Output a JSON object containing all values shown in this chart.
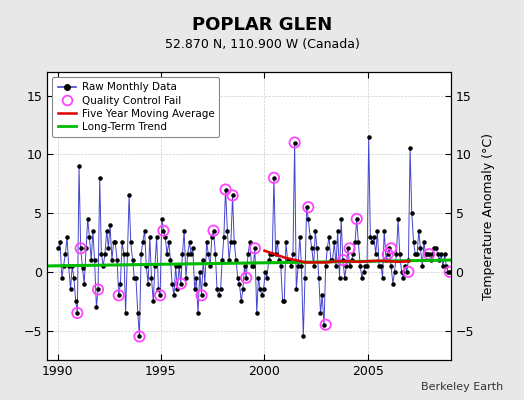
{
  "title": "POPLAR GLEN",
  "subtitle": "52.870 N, 110.900 W (Canada)",
  "ylabel": "Temperature Anomaly (°C)",
  "credit": "Berkeley Earth",
  "xlim": [
    1989.5,
    2009.0
  ],
  "ylim": [
    -7.5,
    17
  ],
  "yticks": [
    -5,
    0,
    5,
    10,
    15
  ],
  "xticks": [
    1990,
    1995,
    2000,
    2005
  ],
  "bg_color": "#e8e8e8",
  "plot_bg": "#ffffff",
  "raw_color": "#4444cc",
  "raw_dot_color": "#000000",
  "qc_color": "#ff44ff",
  "ma_color": "#dd0000",
  "trend_color": "#00bb00",
  "raw_data_x": [
    1990.04,
    1990.12,
    1990.21,
    1990.29,
    1990.38,
    1990.46,
    1990.54,
    1990.63,
    1990.71,
    1990.79,
    1990.88,
    1990.96,
    1991.04,
    1991.12,
    1991.21,
    1991.29,
    1991.38,
    1991.46,
    1991.54,
    1991.63,
    1991.71,
    1991.79,
    1991.88,
    1991.96,
    1992.04,
    1992.12,
    1992.21,
    1992.29,
    1992.38,
    1992.46,
    1992.54,
    1992.63,
    1992.71,
    1992.79,
    1992.88,
    1992.96,
    1993.04,
    1993.12,
    1993.21,
    1993.29,
    1993.38,
    1993.46,
    1993.54,
    1993.63,
    1993.71,
    1993.79,
    1993.88,
    1993.96,
    1994.04,
    1994.12,
    1994.21,
    1994.29,
    1994.38,
    1994.46,
    1994.54,
    1994.63,
    1994.71,
    1994.79,
    1994.88,
    1994.96,
    1995.04,
    1995.12,
    1995.21,
    1995.29,
    1995.38,
    1995.46,
    1995.54,
    1995.63,
    1995.71,
    1995.79,
    1995.88,
    1995.96,
    1996.04,
    1996.12,
    1996.21,
    1996.29,
    1996.38,
    1996.46,
    1996.54,
    1996.63,
    1996.71,
    1996.79,
    1996.88,
    1996.96,
    1997.04,
    1997.12,
    1997.21,
    1997.29,
    1997.38,
    1997.46,
    1997.54,
    1997.63,
    1997.71,
    1997.79,
    1997.88,
    1997.96,
    1998.04,
    1998.12,
    1998.21,
    1998.29,
    1998.38,
    1998.46,
    1998.54,
    1998.63,
    1998.71,
    1998.79,
    1998.88,
    1998.96,
    1999.04,
    1999.12,
    1999.21,
    1999.29,
    1999.38,
    1999.46,
    1999.54,
    1999.63,
    1999.71,
    1999.79,
    1999.88,
    1999.96,
    2000.04,
    2000.12,
    2000.21,
    2000.29,
    2000.38,
    2000.46,
    2000.54,
    2000.63,
    2000.71,
    2000.79,
    2000.88,
    2000.96,
    2001.04,
    2001.12,
    2001.21,
    2001.29,
    2001.38,
    2001.46,
    2001.54,
    2001.63,
    2001.71,
    2001.79,
    2001.88,
    2001.96,
    2002.04,
    2002.12,
    2002.21,
    2002.29,
    2002.38,
    2002.46,
    2002.54,
    2002.63,
    2002.71,
    2002.79,
    2002.88,
    2002.96,
    2003.04,
    2003.12,
    2003.21,
    2003.29,
    2003.38,
    2003.46,
    2003.54,
    2003.63,
    2003.71,
    2003.79,
    2003.88,
    2003.96,
    2004.04,
    2004.12,
    2004.21,
    2004.29,
    2004.38,
    2004.46,
    2004.54,
    2004.63,
    2004.71,
    2004.79,
    2004.88,
    2004.96,
    2005.04,
    2005.12,
    2005.21,
    2005.29,
    2005.38,
    2005.46,
    2005.54,
    2005.63,
    2005.71,
    2005.79,
    2005.88,
    2005.96,
    2006.04,
    2006.12,
    2006.21,
    2006.29,
    2006.38,
    2006.46,
    2006.54,
    2006.63,
    2006.71,
    2006.79,
    2006.88,
    2006.96,
    2007.04,
    2007.12,
    2007.21,
    2007.29,
    2007.38,
    2007.46,
    2007.54,
    2007.63,
    2007.71,
    2007.79,
    2007.88,
    2007.96,
    2008.04,
    2008.12,
    2008.21,
    2008.29,
    2008.38,
    2008.46,
    2008.54,
    2008.63,
    2008.71,
    2008.79,
    2008.88,
    2008.96
  ],
  "raw_data_y": [
    2.0,
    2.5,
    -0.5,
    0.5,
    1.5,
    3.0,
    0.5,
    -1.5,
    0.5,
    -0.5,
    -2.5,
    -3.5,
    9.0,
    2.0,
    0.3,
    -1.0,
    2.0,
    4.5,
    3.0,
    1.0,
    3.5,
    1.0,
    -3.0,
    -1.5,
    8.0,
    1.5,
    0.5,
    1.5,
    3.5,
    2.0,
    4.0,
    1.0,
    2.5,
    2.5,
    1.0,
    -2.0,
    -1.0,
    2.5,
    1.5,
    -3.5,
    1.5,
    6.5,
    2.5,
    1.0,
    -0.5,
    -0.5,
    -3.5,
    -5.5,
    1.5,
    2.5,
    3.5,
    0.5,
    -1.0,
    3.0,
    -0.5,
    -2.5,
    0.5,
    3.0,
    -1.5,
    -2.0,
    4.5,
    3.5,
    3.0,
    1.5,
    2.5,
    1.0,
    -1.0,
    -2.0,
    0.5,
    -1.5,
    0.5,
    -1.0,
    1.5,
    3.5,
    -0.5,
    1.5,
    2.5,
    1.5,
    2.0,
    -1.5,
    -0.5,
    -3.5,
    0.0,
    -2.0,
    1.0,
    -1.0,
    2.5,
    1.5,
    0.5,
    3.0,
    3.5,
    1.5,
    -1.5,
    -2.0,
    -1.5,
    1.0,
    3.0,
    7.0,
    3.5,
    1.0,
    2.5,
    6.5,
    2.5,
    1.0,
    -0.5,
    -1.0,
    -2.5,
    -1.5,
    0.5,
    -0.5,
    1.5,
    2.5,
    0.5,
    0.5,
    2.0,
    -3.5,
    -0.5,
    -1.5,
    -2.0,
    -1.5,
    0.0,
    -0.5,
    1.0,
    1.5,
    1.5,
    8.0,
    1.5,
    2.5,
    1.0,
    0.5,
    -2.5,
    -2.5,
    2.5,
    1.0,
    1.0,
    0.5,
    1.5,
    11.0,
    -1.5,
    0.5,
    3.0,
    0.5,
    -5.5,
    -0.5,
    5.5,
    4.5,
    3.0,
    2.0,
    0.5,
    3.5,
    2.0,
    -0.5,
    -3.5,
    -2.0,
    -4.5,
    0.5,
    2.0,
    3.0,
    1.0,
    1.0,
    2.5,
    0.5,
    3.5,
    -0.5,
    4.5,
    1.0,
    -0.5,
    0.5,
    2.0,
    0.5,
    1.0,
    1.5,
    2.5,
    4.5,
    2.5,
    0.5,
    -0.5,
    0.0,
    0.5,
    0.5,
    11.5,
    3.0,
    2.5,
    3.0,
    1.5,
    3.5,
    0.5,
    0.5,
    -0.5,
    3.5,
    1.0,
    1.5,
    2.0,
    0.5,
    -1.0,
    0.0,
    1.5,
    4.5,
    1.5,
    0.0,
    -0.5,
    0.5,
    0.0,
    1.0,
    10.5,
    5.0,
    2.5,
    1.5,
    1.5,
    3.5,
    2.0,
    0.5,
    2.5,
    1.5,
    1.5,
    1.5,
    1.0,
    1.5,
    2.0,
    2.0,
    1.5,
    1.0,
    1.5,
    0.5,
    1.5,
    0.5,
    0.0,
    0.0
  ],
  "qc_fail_x": [
    1990.96,
    1991.12,
    1991.96,
    1992.96,
    1993.96,
    1994.96,
    1995.12,
    1995.96,
    1996.96,
    1997.54,
    1998.12,
    1998.46,
    1999.12,
    1999.54,
    2000.46,
    2001.46,
    2002.12,
    2002.96,
    2003.79,
    2004.12,
    2004.46,
    2005.96,
    2006.12,
    2006.96,
    2007.96,
    2008.96
  ],
  "qc_fail_y": [
    -3.5,
    2.0,
    -1.5,
    -2.0,
    -5.5,
    -2.0,
    3.5,
    -1.0,
    -2.0,
    3.5,
    7.0,
    6.5,
    -0.5,
    2.0,
    8.0,
    11.0,
    5.5,
    -4.5,
    1.0,
    2.0,
    4.5,
    1.5,
    2.0,
    0.0,
    1.5,
    0.0
  ],
  "trend_x": [
    1989.5,
    2009.0
  ],
  "trend_y": [
    0.5,
    1.0
  ],
  "ma_x": [
    2000.0,
    2000.5,
    2001.0,
    2001.5,
    2002.0,
    2002.5,
    2003.0,
    2003.5,
    2004.0,
    2004.5,
    2005.0,
    2005.5,
    2006.0,
    2006.5,
    2007.0
  ],
  "ma_y": [
    1.8,
    1.5,
    1.2,
    1.0,
    0.8,
    0.8,
    0.8,
    0.9,
    0.9,
    0.85,
    0.9,
    0.95,
    0.9,
    0.85,
    0.9
  ]
}
